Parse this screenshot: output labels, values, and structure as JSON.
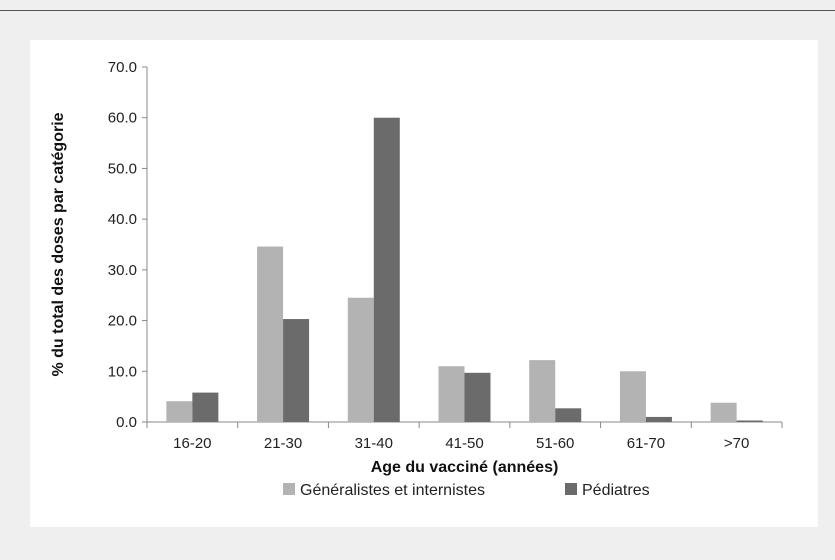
{
  "chart_data": {
    "type": "bar",
    "title": "",
    "categories": [
      "16-20",
      "21-30",
      "31-40",
      "41-50",
      "51-60",
      "61-70",
      ">70"
    ],
    "series": [
      {
        "name": "Généralistes et internistes",
        "color": "#b3b3b3",
        "values": [
          4.1,
          34.6,
          24.5,
          11.0,
          12.2,
          10.0,
          3.8
        ]
      },
      {
        "name": "Pédiatres",
        "color": "#6b6b6b",
        "values": [
          5.8,
          20.3,
          60.0,
          9.7,
          2.7,
          1.0,
          0.3
        ]
      }
    ],
    "xlabel": "Age du vacciné (années)",
    "ylabel": "% du total des doses par catégorie",
    "ylim": [
      0,
      70
    ],
    "yticks": [
      "0.0",
      "10.0",
      "20.0",
      "30.0",
      "40.0",
      "50.0",
      "60.0",
      "70.0"
    ],
    "grid": false,
    "legend_position": "bottom"
  }
}
